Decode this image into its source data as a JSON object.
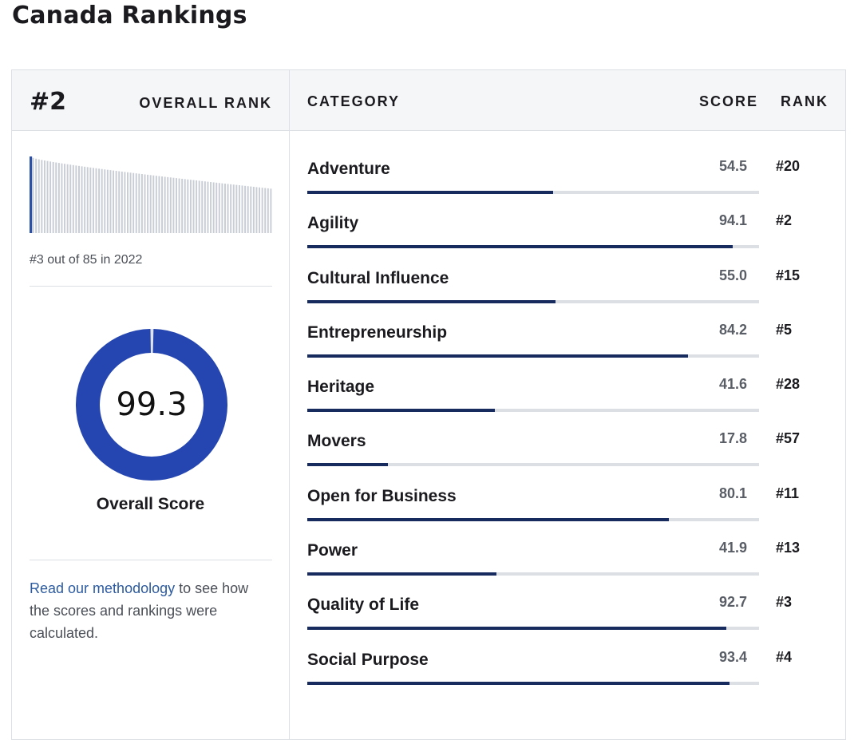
{
  "page_title": "Canada Rankings",
  "overall": {
    "rank": "#2",
    "rank_label": "OVERALL RANK",
    "history_caption": "#3 out of 85 in 2022",
    "history_bars": {
      "count": 85,
      "highlight_index": 0,
      "bar_color": "#c9ced6",
      "highlight_color": "#2c4fa8"
    },
    "score": "99.3",
    "score_value": 99.3,
    "score_label": "Overall Score",
    "donut_color": "#2546b0",
    "methodology_link": "Read our methodology",
    "methodology_text": " to see how the scores and rankings were calculated."
  },
  "table": {
    "header_category": "CATEGORY",
    "header_score": "SCORE",
    "header_rank": "RANK",
    "bar_color": "#172b5e",
    "rows": [
      {
        "name": "Adventure",
        "score": "54.5",
        "rank": "#20"
      },
      {
        "name": "Agility",
        "score": "94.1",
        "rank": "#2"
      },
      {
        "name": "Cultural Influence",
        "score": "55.0",
        "rank": "#15"
      },
      {
        "name": "Entrepreneurship",
        "score": "84.2",
        "rank": "#5"
      },
      {
        "name": "Heritage",
        "score": "41.6",
        "rank": "#28"
      },
      {
        "name": "Movers",
        "score": "17.8",
        "rank": "#57"
      },
      {
        "name": "Open for Business",
        "score": "80.1",
        "rank": "#11"
      },
      {
        "name": "Power",
        "score": "41.9",
        "rank": "#13"
      },
      {
        "name": "Quality of Life",
        "score": "92.7",
        "rank": "#3"
      },
      {
        "name": "Social Purpose",
        "score": "93.4",
        "rank": "#4"
      }
    ]
  }
}
